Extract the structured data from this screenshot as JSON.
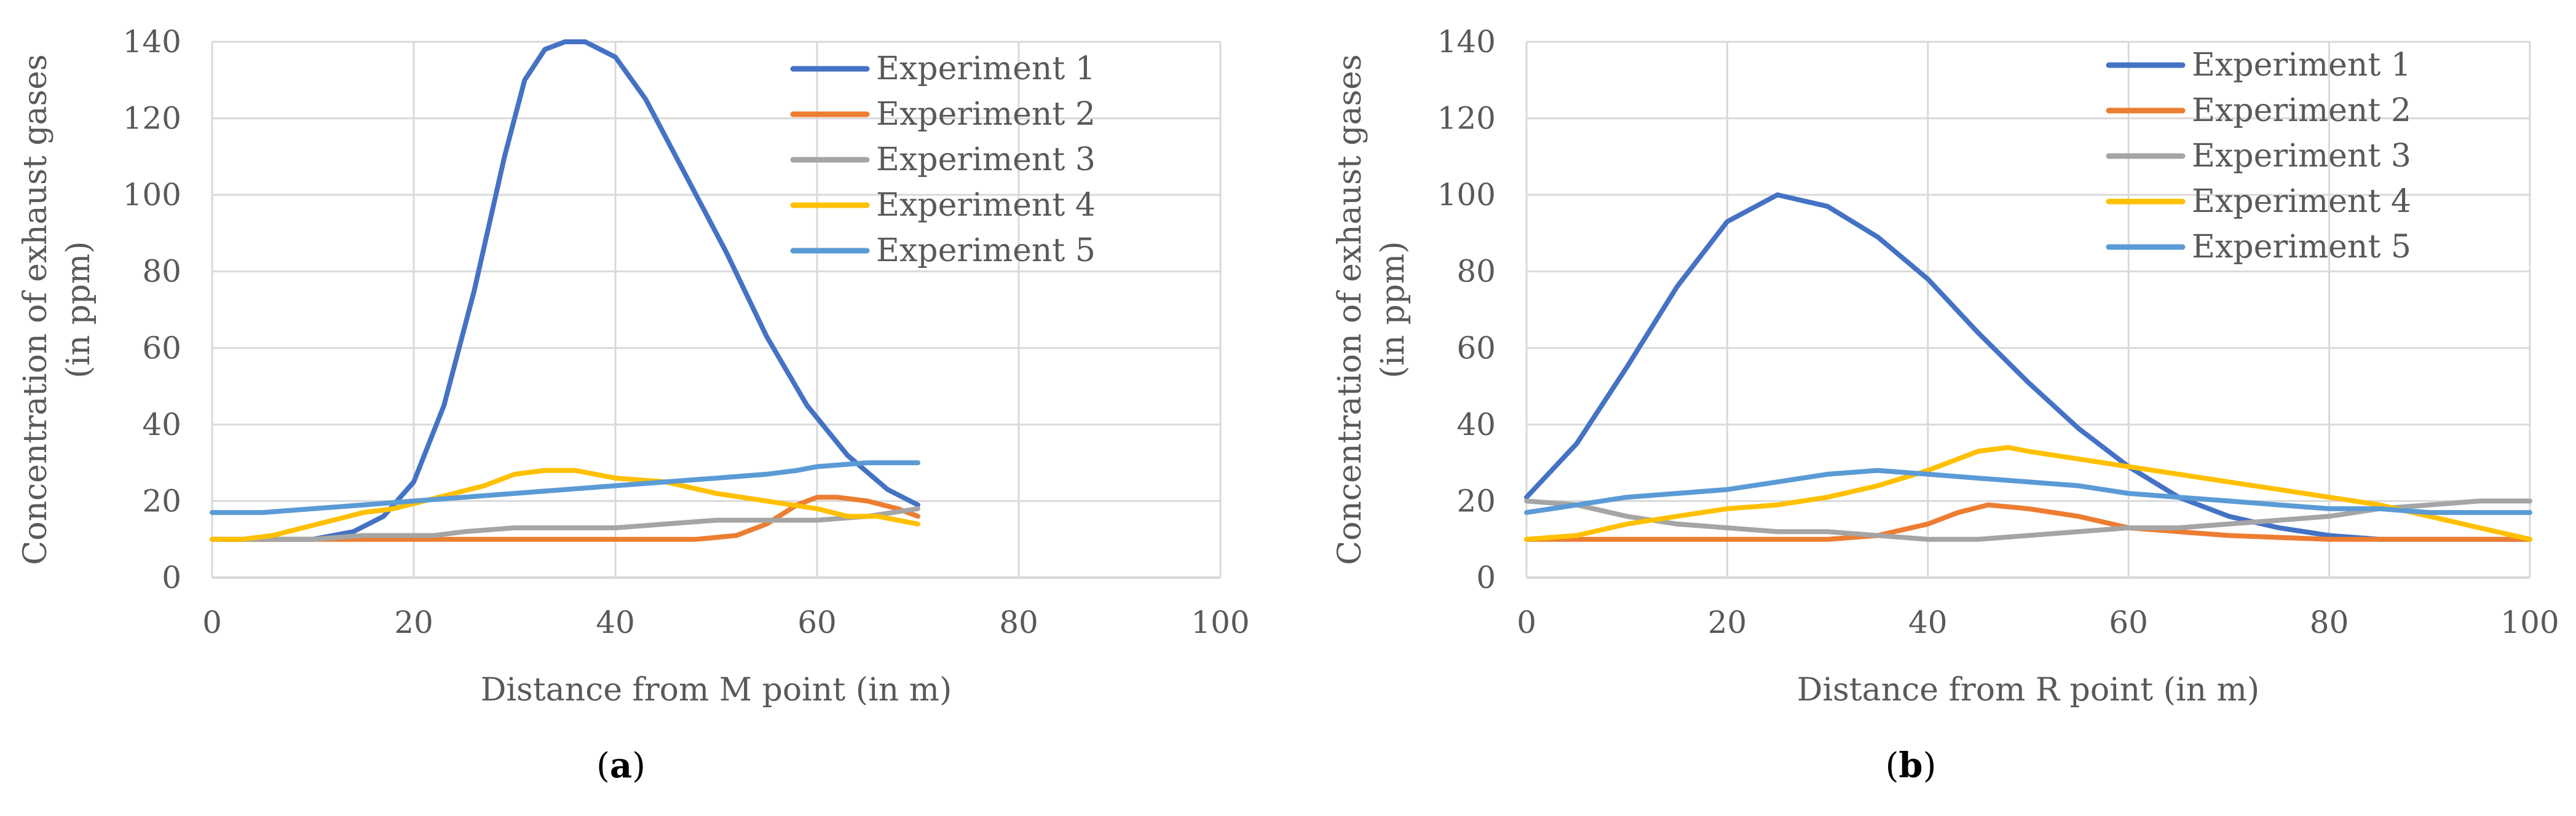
{
  "colors": {
    "experiment_1": "#4472C4",
    "experiment_2": "#ED7D31",
    "experiment_3": "#A5A5A5",
    "experiment_4": "#FFC000",
    "experiment_5": "#5B9BD5",
    "grid": "#D9D9D9",
    "text": "#595959"
  },
  "chart_data": [
    {
      "type": "line",
      "panel_label": "a",
      "title": "",
      "xlabel": "Distance from M point (in m)",
      "ylabel_line1": "Concentration of exhaust gases",
      "ylabel_line2": "(in ppm)",
      "xlim": [
        0,
        100
      ],
      "ylim": [
        0,
        140
      ],
      "x_ticks": [
        0,
        20,
        40,
        60,
        80,
        100
      ],
      "y_ticks": [
        0,
        20,
        40,
        60,
        80,
        100,
        120,
        140
      ],
      "grid": true,
      "legend_position": "top-right",
      "series": [
        {
          "name": "Experiment 1",
          "x": [
            0,
            10,
            14,
            17,
            20,
            23,
            26,
            29,
            31,
            33,
            35,
            37,
            40,
            43,
            47,
            51,
            55,
            59,
            63,
            67,
            70
          ],
          "values": [
            10,
            10,
            12,
            16,
            25,
            45,
            75,
            110,
            130,
            138,
            140,
            140,
            136,
            125,
            105,
            85,
            63,
            45,
            32,
            23,
            19
          ]
        },
        {
          "name": "Experiment 2",
          "x": [
            0,
            10,
            20,
            30,
            40,
            48,
            52,
            55,
            58,
            60,
            62,
            65,
            68,
            70
          ],
          "values": [
            10,
            10,
            10,
            10,
            10,
            10,
            11,
            14,
            19,
            21,
            21,
            20,
            18,
            16
          ]
        },
        {
          "name": "Experiment 3",
          "x": [
            0,
            10,
            15,
            20,
            22,
            25,
            30,
            35,
            40,
            45,
            50,
            55,
            60,
            65,
            70
          ],
          "values": [
            10,
            10,
            11,
            11,
            11,
            12,
            13,
            13,
            13,
            14,
            15,
            15,
            15,
            16,
            18
          ]
        },
        {
          "name": "Experiment 4",
          "x": [
            0,
            3,
            6,
            9,
            12,
            15,
            18,
            21,
            24,
            27,
            30,
            33,
            36,
            38,
            40,
            45,
            50,
            55,
            60,
            63,
            66,
            70
          ],
          "values": [
            10,
            10,
            11,
            13,
            15,
            17,
            18,
            20,
            22,
            24,
            27,
            28,
            28,
            27,
            26,
            25,
            22,
            20,
            18,
            16,
            16,
            14
          ]
        },
        {
          "name": "Experiment 5",
          "x": [
            0,
            5,
            10,
            15,
            20,
            25,
            30,
            35,
            40,
            45,
            50,
            55,
            58,
            60,
            65,
            70
          ],
          "values": [
            17,
            17,
            18,
            19,
            20,
            21,
            22,
            23,
            24,
            25,
            26,
            27,
            28,
            29,
            30,
            30
          ]
        }
      ]
    },
    {
      "type": "line",
      "panel_label": "b",
      "title": "",
      "xlabel": "Distance from R point (in m)",
      "ylabel_line1": "Concentration of exhaust gases",
      "ylabel_line2": "(in ppm)",
      "xlim": [
        0,
        100
      ],
      "ylim": [
        0,
        140
      ],
      "x_ticks": [
        0,
        20,
        40,
        60,
        80,
        100
      ],
      "y_ticks": [
        0,
        20,
        40,
        60,
        80,
        100,
        120,
        140
      ],
      "grid": true,
      "legend_position": "top-right",
      "series": [
        {
          "name": "Experiment 1",
          "x": [
            0,
            5,
            10,
            15,
            20,
            25,
            30,
            35,
            40,
            45,
            50,
            55,
            60,
            65,
            70,
            75,
            80,
            85,
            90,
            95,
            100
          ],
          "values": [
            21,
            35,
            55,
            76,
            93,
            100,
            97,
            89,
            78,
            64,
            51,
            39,
            29,
            21,
            16,
            13,
            11,
            10,
            10,
            10,
            10
          ]
        },
        {
          "name": "Experiment 2",
          "x": [
            0,
            10,
            20,
            30,
            35,
            40,
            43,
            46,
            50,
            55,
            60,
            65,
            70,
            80,
            90,
            100
          ],
          "values": [
            10,
            10,
            10,
            10,
            11,
            14,
            17,
            19,
            18,
            16,
            13,
            12,
            11,
            10,
            10,
            10
          ]
        },
        {
          "name": "Experiment 3",
          "x": [
            0,
            5,
            10,
            15,
            20,
            25,
            30,
            35,
            40,
            45,
            50,
            55,
            60,
            65,
            70,
            75,
            80,
            85,
            90,
            95,
            100
          ],
          "values": [
            20,
            19,
            16,
            14,
            13,
            12,
            12,
            11,
            10,
            10,
            11,
            12,
            13,
            13,
            14,
            15,
            16,
            18,
            19,
            20,
            20
          ]
        },
        {
          "name": "Experiment 4",
          "x": [
            0,
            5,
            10,
            15,
            20,
            25,
            30,
            35,
            40,
            43,
            45,
            48,
            50,
            55,
            60,
            65,
            70,
            75,
            80,
            85,
            90,
            95,
            100
          ],
          "values": [
            10,
            11,
            14,
            16,
            18,
            19,
            21,
            24,
            28,
            31,
            33,
            34,
            33,
            31,
            29,
            27,
            25,
            23,
            21,
            19,
            16,
            13,
            10
          ]
        },
        {
          "name": "Experiment 5",
          "x": [
            0,
            5,
            10,
            15,
            20,
            25,
            30,
            35,
            40,
            45,
            50,
            55,
            60,
            65,
            70,
            75,
            80,
            85,
            90,
            95,
            100
          ],
          "values": [
            17,
            19,
            21,
            22,
            23,
            25,
            27,
            28,
            27,
            26,
            25,
            24,
            22,
            21,
            20,
            19,
            18,
            18,
            17,
            17,
            17
          ]
        }
      ]
    }
  ]
}
